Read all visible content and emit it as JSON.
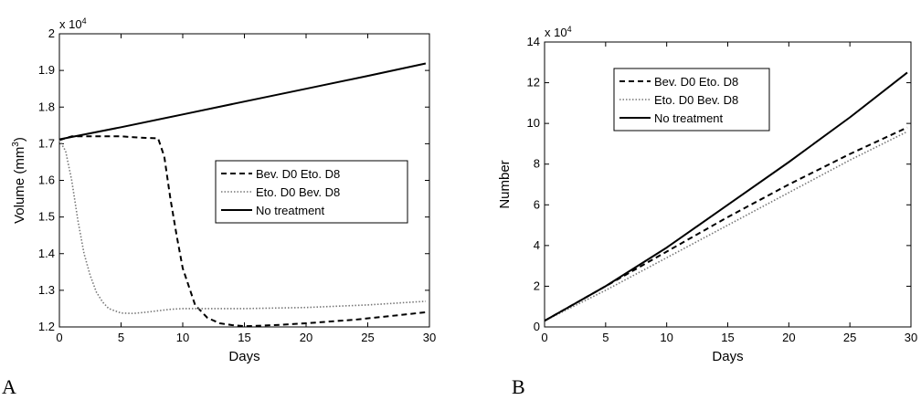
{
  "chart_data": [
    {
      "type": "line",
      "panel_label": "A",
      "xlabel": "Days",
      "ylabel": "Volume (mm",
      "ylabel_sup": "3",
      "ylabel_end": ")",
      "y_exponent": "x 10",
      "y_exponent_power": "4",
      "xlim": [
        0,
        30
      ],
      "ylim": [
        1.2,
        2.0
      ],
      "xticks": [
        "0",
        "5",
        "10",
        "15",
        "20",
        "25",
        "30"
      ],
      "yticks": [
        "1.2",
        "1.3",
        "1.4",
        "1.5",
        "1.6",
        "1.7",
        "1.8",
        "1.9",
        "2"
      ],
      "grid": false,
      "legend_position": "center-right",
      "series": [
        {
          "name": "Bev. D0 Eto. D8",
          "style": "dashed",
          "color": "#000000",
          "x": [
            0,
            1,
            2,
            3,
            4,
            5,
            6,
            7,
            8,
            8.5,
            9,
            9.5,
            10,
            10.5,
            11,
            12,
            13,
            14,
            15,
            16,
            18,
            20,
            22,
            24,
            26,
            28,
            29.7
          ],
          "y": [
            1.71,
            1.72,
            1.72,
            1.72,
            1.72,
            1.72,
            1.718,
            1.716,
            1.715,
            1.665,
            1.55,
            1.45,
            1.36,
            1.31,
            1.26,
            1.225,
            1.21,
            1.205,
            1.202,
            1.203,
            1.206,
            1.21,
            1.215,
            1.22,
            1.227,
            1.234,
            1.24
          ]
        },
        {
          "name": "Eto. D0 Bev. D8",
          "style": "dotted",
          "color": "#777777",
          "x": [
            0,
            0.5,
            1,
            1.5,
            2,
            2.5,
            3,
            3.5,
            4,
            5,
            6,
            7,
            8,
            9,
            10,
            12,
            15,
            20,
            25,
            29.7
          ],
          "y": [
            1.71,
            1.68,
            1.6,
            1.49,
            1.4,
            1.34,
            1.295,
            1.268,
            1.25,
            1.238,
            1.237,
            1.24,
            1.244,
            1.248,
            1.25,
            1.25,
            1.25,
            1.253,
            1.26,
            1.27
          ]
        },
        {
          "name": "No treatment",
          "style": "solid",
          "color": "#000000",
          "x": [
            0,
            5,
            10,
            15,
            20,
            25,
            29.7
          ],
          "y": [
            1.712,
            1.745,
            1.78,
            1.815,
            1.85,
            1.885,
            1.919
          ]
        }
      ]
    },
    {
      "type": "line",
      "panel_label": "B",
      "xlabel": "Days",
      "ylabel": "Number",
      "y_exponent": "x 10",
      "y_exponent_power": "4",
      "xlim": [
        0,
        30
      ],
      "ylim": [
        0,
        14
      ],
      "xticks": [
        "0",
        "5",
        "10",
        "15",
        "20",
        "25",
        "30"
      ],
      "yticks": [
        "0",
        "2",
        "4",
        "6",
        "8",
        "10",
        "12",
        "14"
      ],
      "grid": false,
      "legend_position": "top-left",
      "series": [
        {
          "name": "Bev. D0 Eto. D8",
          "style": "dashed",
          "color": "#000000",
          "x": [
            0,
            5,
            10,
            15,
            20,
            25,
            29.7
          ],
          "y": [
            0.3,
            2.0,
            3.7,
            5.4,
            7.0,
            8.5,
            9.8
          ]
        },
        {
          "name": "Eto. D0 Bev. D8",
          "style": "dotted",
          "color": "#777777",
          "x": [
            0,
            5,
            10,
            15,
            20,
            25,
            29.7
          ],
          "y": [
            0.3,
            1.8,
            3.4,
            5.0,
            6.6,
            8.2,
            9.6
          ]
        },
        {
          "name": "No treatment",
          "style": "solid",
          "color": "#000000",
          "x": [
            0,
            5,
            10,
            15,
            20,
            25,
            29.7
          ],
          "y": [
            0.3,
            2.0,
            3.9,
            6.0,
            8.1,
            10.3,
            12.5
          ]
        }
      ]
    }
  ]
}
